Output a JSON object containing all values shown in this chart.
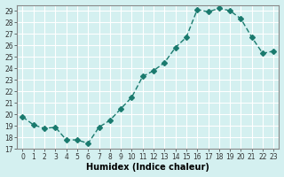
{
  "x": [
    0,
    1,
    2,
    3,
    4,
    5,
    6,
    7,
    8,
    9,
    10,
    11,
    12,
    13,
    14,
    15,
    16,
    17,
    18,
    19,
    20,
    21,
    22,
    23
  ],
  "y": [
    19.8,
    19.1,
    18.8,
    18.9,
    17.8,
    17.8,
    17.5,
    18.9,
    19.5,
    20.5,
    21.5,
    23.3,
    23.8,
    24.5,
    25.8,
    26.7,
    29.1,
    28.9,
    29.2,
    29.0,
    28.3,
    26.7,
    25.3,
    25.5
  ],
  "line_color": "#1a7a6e",
  "marker": "D",
  "marker_size": 3,
  "bg_color": "#d4f0f0",
  "grid_color": "#ffffff",
  "xlabel": "Humidex (Indice chaleur)",
  "ylabel": "",
  "title": "",
  "xlim": [
    -0.5,
    23.5
  ],
  "ylim": [
    17,
    29.5
  ],
  "yticks": [
    17,
    18,
    19,
    20,
    21,
    22,
    23,
    24,
    25,
    26,
    27,
    28,
    29
  ],
  "xticks": [
    0,
    1,
    2,
    3,
    4,
    5,
    6,
    7,
    8,
    9,
    10,
    11,
    12,
    13,
    14,
    15,
    16,
    17,
    18,
    19,
    20,
    21,
    22,
    23
  ]
}
